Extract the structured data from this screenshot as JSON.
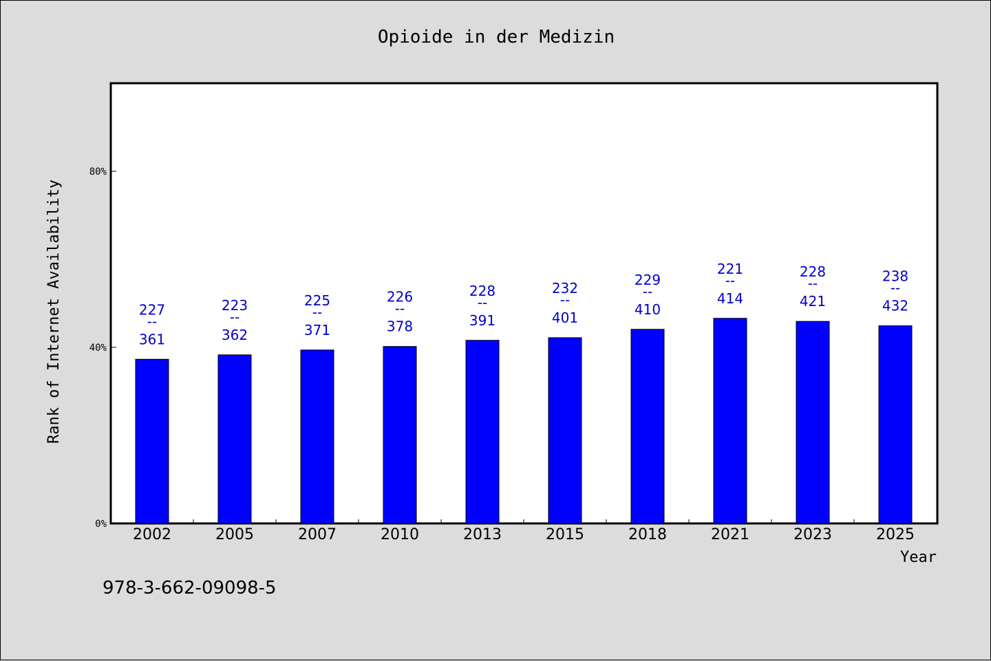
{
  "chart_data": {
    "type": "bar",
    "title": "Opioide in der Medizin",
    "xlabel": "Year",
    "ylabel": "Rank of Internet Availability",
    "categories": [
      "2002",
      "2005",
      "2007",
      "2010",
      "2013",
      "2015",
      "2018",
      "2021",
      "2023",
      "2025"
    ],
    "values": [
      37.3,
      38.3,
      39.4,
      40.2,
      41.6,
      42.2,
      44.1,
      46.6,
      45.9,
      44.9
    ],
    "labels_top": [
      "227",
      "223",
      "225",
      "226",
      "228",
      "232",
      "229",
      "221",
      "228",
      "238"
    ],
    "labels_bottom": [
      "361",
      "362",
      "371",
      "378",
      "391",
      "401",
      "410",
      "414",
      "421",
      "432"
    ],
    "label_separator": "--",
    "ylim": [
      0,
      100
    ],
    "yticks": [
      0,
      40,
      80
    ],
    "ytick_labels": [
      "0%",
      "40%",
      "80%"
    ],
    "grid": false,
    "bar_color": "#0000ff",
    "label_color": "#0000cc",
    "plot_background": "#ffffff",
    "page_background": "#dcdcdc"
  },
  "footer": {
    "isbn": "978-3-662-09098-5"
  }
}
